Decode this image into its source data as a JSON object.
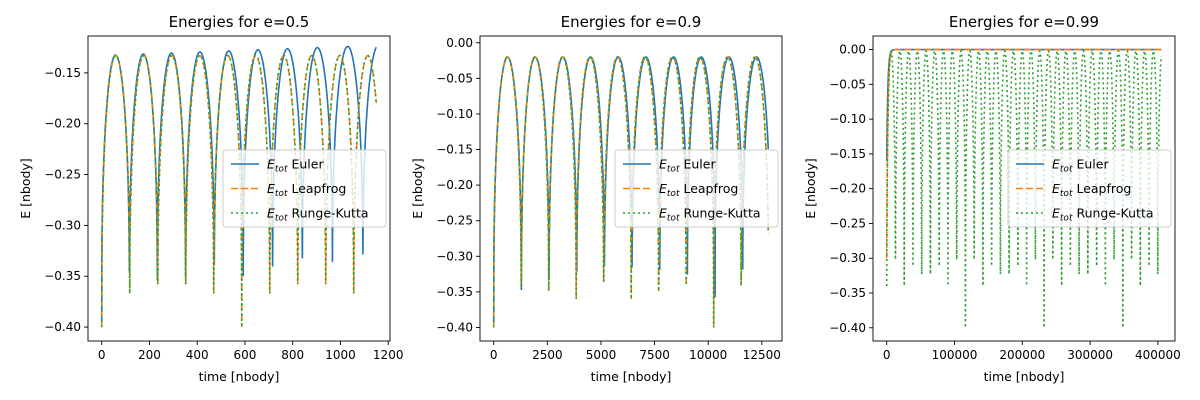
{
  "colors": {
    "euler": "#1f77b4",
    "leapfrog": "#ff7f0e",
    "rk": "#2ca02c"
  },
  "legend_location": "center-right",
  "chart_data": [
    {
      "type": "line",
      "title": "Energies for e=0.5",
      "xlabel": "time [nbody]",
      "ylabel": "E [nbody]",
      "xlim": [
        -57.5,
        1207.5
      ],
      "ylim": [
        -0.4137,
        -0.1137
      ],
      "xticks": [
        0,
        200,
        400,
        600,
        800,
        1000,
        1200
      ],
      "xtick_labels": [
        "0",
        "200",
        "400",
        "600",
        "800",
        "1000",
        "1200"
      ],
      "yticks": [
        -0.4,
        -0.35,
        -0.3,
        -0.25,
        -0.2,
        -0.15
      ],
      "ytick_labels": [
        "−0.40",
        "−0.35",
        "−0.30",
        "−0.25",
        "−0.20",
        "−0.15"
      ],
      "x_max": 1150,
      "energy_min": -0.4,
      "series": [
        {
          "key": "euler",
          "name": "Euler",
          "style": "solid",
          "start_energy": -0.4,
          "peak_energy": -0.133,
          "final_peak_energy": -0.123,
          "period": 115,
          "period_drift": 0.006,
          "first_dip_energy": -0.39,
          "last_dip_energy": -0.36
        },
        {
          "key": "leapfrog",
          "name": "Leapfrog",
          "style": "dashed",
          "start_energy": -0.4,
          "peak_energy": -0.133,
          "final_peak_energy": -0.133,
          "period": 117.3,
          "period_drift": 0,
          "first_dip_energy": -0.4,
          "last_dip_energy": -0.4
        },
        {
          "key": "rk",
          "name": "Runge-Kutta",
          "style": "dotted",
          "start_energy": -0.4,
          "peak_energy": -0.133,
          "final_peak_energy": -0.133,
          "period": 117.3,
          "period_drift": 0,
          "first_dip_energy": -0.4,
          "last_dip_energy": -0.4
        }
      ],
      "legend": [
        {
          "key": "euler",
          "prefix": "E",
          "sub": "tot",
          "label": "Euler"
        },
        {
          "key": "leapfrog",
          "prefix": "E",
          "sub": "tot",
          "label": "Leapfrog"
        },
        {
          "key": "rk",
          "prefix": "E",
          "sub": "tot",
          "label": "Runge-Kutta"
        }
      ]
    },
    {
      "type": "line",
      "title": "Energies for e=0.9",
      "xlabel": "time [nbody]",
      "ylabel": "E [nbody]",
      "xlim": [
        -640,
        13440
      ],
      "ylim": [
        -0.419,
        0.0095
      ],
      "xticks": [
        0,
        2500,
        5000,
        7500,
        10000,
        12500
      ],
      "xtick_labels": [
        "0",
        "2500",
        "5000",
        "7500",
        "10000",
        "12500"
      ],
      "yticks": [
        -0.4,
        -0.35,
        -0.3,
        -0.25,
        -0.2,
        -0.15,
        -0.1,
        -0.05,
        0.0
      ],
      "ytick_labels": [
        "−0.40",
        "−0.35",
        "−0.30",
        "−0.25",
        "−0.20",
        "−0.15",
        "−0.10",
        "−0.05",
        "0.00"
      ],
      "x_max": 12800,
      "energy_min": -0.4,
      "series": [
        {
          "key": "euler",
          "name": "Euler",
          "style": "solid",
          "start_energy": -0.4,
          "peak_energy": -0.02,
          "final_peak_energy": -0.02,
          "period": 1290,
          "period_drift": 0,
          "first_dip_energy": -0.39,
          "last_dip_energy": -0.35
        },
        {
          "key": "leapfrog",
          "name": "Leapfrog",
          "style": "dashed",
          "start_energy": -0.4,
          "peak_energy": -0.02,
          "final_peak_energy": -0.02,
          "period": 1282,
          "period_drift": 0,
          "first_dip_energy": -0.4,
          "last_dip_energy": -0.4
        },
        {
          "key": "rk",
          "name": "Runge-Kutta",
          "style": "dotted",
          "start_energy": -0.4,
          "peak_energy": -0.02,
          "final_peak_energy": -0.02,
          "period": 1282,
          "period_drift": 0,
          "first_dip_energy": -0.4,
          "last_dip_energy": -0.4
        }
      ],
      "legend": [
        {
          "key": "euler",
          "prefix": "E",
          "sub": "tot",
          "label": "Euler"
        },
        {
          "key": "leapfrog",
          "prefix": "E",
          "sub": "tot",
          "label": "Leapfrog"
        },
        {
          "key": "rk",
          "prefix": "E",
          "sub": "tot",
          "label": "Runge-Kutta"
        }
      ]
    },
    {
      "type": "line",
      "title": "Energies for e=0.99",
      "xlabel": "time [nbody]",
      "ylabel": "E [nbody]",
      "xlim": [
        -20250,
        425250
      ],
      "ylim": [
        -0.419,
        0.0195
      ],
      "xticks": [
        0,
        100000,
        200000,
        300000,
        400000
      ],
      "xtick_labels": [
        "0",
        "100000",
        "200000",
        "300000",
        "400000"
      ],
      "yticks": [
        -0.4,
        -0.35,
        -0.3,
        -0.25,
        -0.2,
        -0.15,
        -0.1,
        -0.05,
        0.0
      ],
      "ytick_labels": [
        "−0.40",
        "−0.35",
        "−0.30",
        "−0.25",
        "−0.20",
        "−0.15",
        "−0.10",
        "−0.05",
        "0.00"
      ],
      "x_max": 405000,
      "energy_min": -0.4,
      "series": [
        {
          "key": "euler",
          "name": "Euler",
          "style": "solid",
          "start_energy": -0.16,
          "peak_energy": 0.0,
          "final_peak_energy": 0.0,
          "period": 0,
          "period_drift": 0,
          "first_dip_energy": -0.16,
          "last_dip_energy": -0.16
        },
        {
          "key": "leapfrog",
          "name": "Leapfrog",
          "style": "dashed",
          "start_energy": -0.3,
          "peak_energy": 0.0,
          "final_peak_energy": 0.0,
          "period": 0,
          "period_drift": 0,
          "first_dip_energy": -0.3,
          "last_dip_energy": -0.3
        },
        {
          "key": "rk",
          "name": "Runge-Kutta",
          "style": "dotted",
          "start_energy": -0.34,
          "peak_energy": -0.002,
          "final_peak_energy": -0.002,
          "period": 12900,
          "period_drift": 0,
          "first_dip_energy": -0.4,
          "last_dip_energy": -0.4
        }
      ],
      "legend": [
        {
          "key": "euler",
          "prefix": "E",
          "sub": "tot",
          "label": "Euler"
        },
        {
          "key": "leapfrog",
          "prefix": "E",
          "sub": "tot",
          "label": "Leapfrog"
        },
        {
          "key": "rk",
          "prefix": "E",
          "sub": "tot",
          "label": "Runge-Kutta"
        }
      ]
    }
  ]
}
